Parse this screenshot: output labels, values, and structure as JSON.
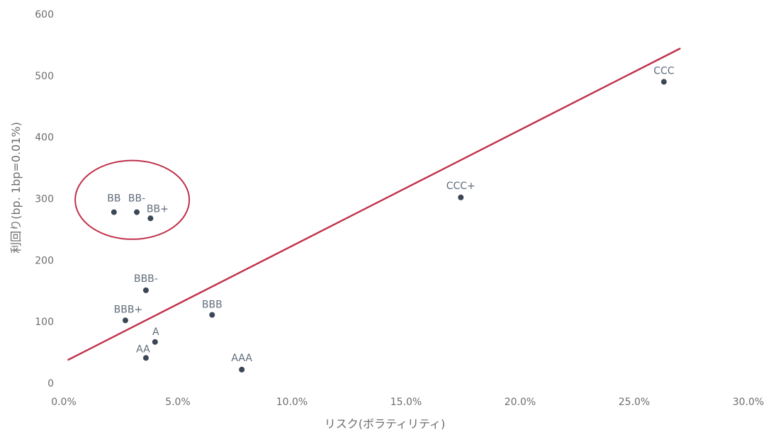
{
  "chart_data": {
    "type": "scatter",
    "title": "",
    "xlabel": "リスク(ボラティリティ)",
    "ylabel": "利回り(bp. 1bp=0.01%)",
    "xlim": [
      0,
      30
    ],
    "ylim": [
      0,
      600
    ],
    "x_ticks": [
      0,
      5,
      10,
      15,
      20,
      25,
      30
    ],
    "x_tick_labels": [
      "0.0%",
      "5.0%",
      "10.0%",
      "15.0%",
      "20.0%",
      "25.0%",
      "30.0%"
    ],
    "y_ticks": [
      0,
      100,
      200,
      300,
      400,
      500,
      600
    ],
    "y_tick_labels": [
      "0",
      "100",
      "200",
      "300",
      "400",
      "500",
      "600"
    ],
    "grid": false,
    "legend": "none",
    "points": [
      {
        "label": "AAA",
        "x": 7.8,
        "y": 22
      },
      {
        "label": "AA",
        "x": 3.6,
        "y": 41
      },
      {
        "label": "A",
        "x": 4.0,
        "y": 67
      },
      {
        "label": "BBB+",
        "x": 2.7,
        "y": 102
      },
      {
        "label": "BBB",
        "x": 6.5,
        "y": 111
      },
      {
        "label": "BBB-",
        "x": 3.6,
        "y": 151
      },
      {
        "label": "BB+",
        "x": 3.8,
        "y": 268
      },
      {
        "label": "BB-",
        "x": 3.2,
        "y": 278
      },
      {
        "label": "BB",
        "x": 2.2,
        "y": 278
      },
      {
        "label": "CCC+",
        "x": 17.4,
        "y": 302
      },
      {
        "label": "CCC",
        "x": 26.3,
        "y": 490
      }
    ],
    "trendline": {
      "x": [
        0.2,
        27.0
      ],
      "y": [
        38,
        544
      ],
      "color": "#c0304a"
    },
    "highlight": {
      "center": {
        "x": 3.0,
        "y": 298
      },
      "rx": 2.5,
      "ry": 64,
      "color": "#c0304a"
    },
    "point_color": "#3b4656",
    "label_color": "#5f6b7a",
    "axis_color": "#6d6d6d"
  }
}
